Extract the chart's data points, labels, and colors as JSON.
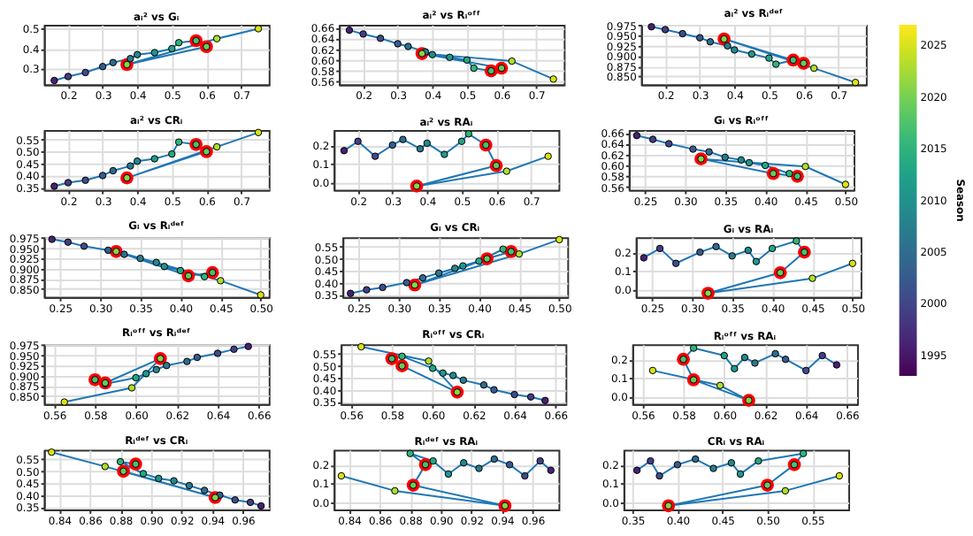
{
  "chart_data": [
    {
      "type": "line",
      "title": "aᵢ² vs Gᵢ",
      "xlim": [
        0.13,
        0.78
      ],
      "xticks": [
        0.2,
        0.3,
        0.4,
        0.5,
        0.6,
        0.7
      ],
      "ylim": [
        0.22,
        0.52
      ],
      "yticks": [
        0.3,
        0.4,
        0.5
      ],
      "grid": true,
      "marker": "circle",
      "clim": [
        1993,
        2027
      ],
      "cticks": [
        1995,
        2000,
        2005,
        2010,
        2015,
        2020,
        2025
      ],
      "clabel": "Season",
      "series": [
        {
          "type": "line",
          "color": "#1f77b4",
          "x": [
            0.16,
            0.2,
            0.25,
            0.3,
            0.33,
            0.38,
            0.4,
            0.45,
            0.5,
            0.52,
            0.57,
            0.6,
            0.37,
            0.63,
            0.75
          ],
          "values": [
            0.24,
            0.26,
            0.28,
            0.31,
            0.33,
            0.35,
            0.37,
            0.38,
            0.4,
            0.43,
            0.44,
            0.41,
            0.32,
            0.45,
            0.5
          ],
          "colors": [
            "#482173",
            "#433e85",
            "#3e4c8a",
            "#365c8d",
            "#2e6c8e",
            "#297b8e",
            "#23898e",
            "#1f988b",
            "#22a785",
            "#30b47b",
            "#46c06f",
            "#65cb5e",
            "#86d549",
            "#b0dd2f",
            "#d8e219"
          ]
        },
        {
          "type": "scatter",
          "color": "#ff0000",
          "x": [
            0.57,
            0.6,
            0.37
          ],
          "values": [
            0.44,
            0.41,
            0.32
          ]
        }
      ]
    },
    {
      "type": "line",
      "title": "aᵢ² vs Rᵢᵒᶠᶠ",
      "xlim": [
        0.13,
        0.78
      ],
      "xticks": [
        0.2,
        0.3,
        0.4,
        0.5,
        0.6,
        0.7
      ],
      "ylim": [
        0.555,
        0.665
      ],
      "yticks": [
        0.56,
        0.58,
        {
          "value": 0.6,
          "label": "0.60"
        },
        0.62,
        0.64,
        0.66
      ],
      "grid": true,
      "marker": "circle",
      "series": [
        {
          "type": "line",
          "color": "#1f77b4",
          "x": [
            0.16,
            0.2,
            0.25,
            0.3,
            0.33,
            0.38,
            0.4,
            0.45,
            0.5,
            0.52,
            0.57,
            0.6,
            0.37,
            0.63,
            0.75
          ],
          "values": [
            0.655,
            0.648,
            0.64,
            0.63,
            0.625,
            0.615,
            0.61,
            0.605,
            0.6,
            0.585,
            0.58,
            0.585,
            0.612,
            0.598,
            0.565
          ],
          "colors": [
            "#482173",
            "#433e85",
            "#3e4c8a",
            "#365c8d",
            "#2e6c8e",
            "#297b8e",
            "#23898e",
            "#1f988b",
            "#22a785",
            "#30b47b",
            "#46c06f",
            "#65cb5e",
            "#86d549",
            "#b0dd2f",
            "#d8e219"
          ]
        },
        {
          "type": "scatter",
          "color": "#ff0000",
          "x": [
            0.57,
            0.6,
            0.37
          ],
          "values": [
            0.58,
            0.585,
            0.612
          ]
        }
      ]
    },
    {
      "type": "line",
      "title": "aᵢ² vs Rᵢᵈᵉᶠ",
      "xlim": [
        0.13,
        0.78
      ],
      "xticks": [
        0.2,
        0.3,
        0.4,
        0.5,
        0.6,
        0.7
      ],
      "ylim": [
        0.83,
        0.977
      ],
      "yticks": [
        {
          "value": 0.85,
          "label": "0.850"
        },
        0.875,
        {
          "value": 0.9,
          "label": "0.900"
        },
        0.925,
        {
          "value": 0.95,
          "label": "0.950"
        },
        0.975
      ],
      "grid": true,
      "marker": "circle",
      "series": [
        {
          "type": "line",
          "color": "#1f77b4",
          "x": [
            0.16,
            0.2,
            0.25,
            0.3,
            0.33,
            0.38,
            0.4,
            0.45,
            0.5,
            0.52,
            0.57,
            0.6,
            0.37,
            0.63,
            0.75
          ],
          "values": [
            0.972,
            0.965,
            0.955,
            0.945,
            0.935,
            0.925,
            0.915,
            0.905,
            0.895,
            0.88,
            0.89,
            0.882,
            0.942,
            0.87,
            0.835
          ],
          "colors": [
            "#482173",
            "#433e85",
            "#3e4c8a",
            "#365c8d",
            "#2e6c8e",
            "#297b8e",
            "#23898e",
            "#1f988b",
            "#22a785",
            "#30b47b",
            "#46c06f",
            "#65cb5e",
            "#86d549",
            "#b0dd2f",
            "#d8e219"
          ]
        },
        {
          "type": "scatter",
          "color": "#ff0000",
          "x": [
            0.57,
            0.6,
            0.37
          ],
          "values": [
            0.89,
            0.882,
            0.942
          ]
        }
      ]
    },
    {
      "type": "line",
      "title": "aᵢ² vs CRᵢ",
      "xlim": [
        0.13,
        0.78
      ],
      "xticks": [
        0.2,
        0.3,
        0.4,
        0.5,
        0.6,
        0.7
      ],
      "ylim": [
        0.34,
        0.59
      ],
      "yticks": [
        0.35,
        {
          "value": 0.4,
          "label": "0.40"
        },
        0.45,
        {
          "value": 0.5,
          "label": "0.50"
        },
        0.55
      ],
      "grid": true,
      "marker": "circle",
      "series": [
        {
          "type": "line",
          "color": "#1f77b4",
          "x": [
            0.16,
            0.2,
            0.25,
            0.3,
            0.33,
            0.38,
            0.4,
            0.45,
            0.5,
            0.52,
            0.57,
            0.6,
            0.37,
            0.63,
            0.75
          ],
          "values": [
            0.355,
            0.37,
            0.38,
            0.4,
            0.42,
            0.44,
            0.46,
            0.47,
            0.49,
            0.54,
            0.53,
            0.5,
            0.39,
            0.52,
            0.58
          ],
          "colors": [
            "#482173",
            "#433e85",
            "#3e4c8a",
            "#365c8d",
            "#2e6c8e",
            "#297b8e",
            "#23898e",
            "#1f988b",
            "#22a785",
            "#30b47b",
            "#46c06f",
            "#65cb5e",
            "#86d549",
            "#b0dd2f",
            "#d8e219"
          ]
        },
        {
          "type": "scatter",
          "color": "#ff0000",
          "x": [
            0.57,
            0.6,
            0.37
          ],
          "values": [
            0.53,
            0.5,
            0.39
          ]
        }
      ]
    },
    {
      "type": "line",
      "title": "aᵢ² vs RAᵢ",
      "xlim": [
        0.13,
        0.78
      ],
      "xticks": [
        0.2,
        0.3,
        0.4,
        0.5,
        0.6,
        0.7
      ],
      "ylim": [
        -0.04,
        0.28
      ],
      "yticks": [
        {
          "value": 0,
          "label": "0.0"
        },
        0.1,
        0.2
      ],
      "grid": true,
      "marker": "circle",
      "series": [
        {
          "type": "line",
          "color": "#1f77b4",
          "x": [
            0.16,
            0.2,
            0.25,
            0.3,
            0.33,
            0.38,
            0.4,
            0.45,
            0.5,
            0.52,
            0.57,
            0.6,
            0.37,
            0.63,
            0.75
          ],
          "values": [
            0.17,
            0.22,
            0.14,
            0.2,
            0.23,
            0.18,
            0.21,
            0.15,
            0.22,
            0.26,
            0.2,
            0.09,
            -0.02,
            0.06,
            0.14
          ],
          "colors": [
            "#482173",
            "#433e85",
            "#3e4c8a",
            "#365c8d",
            "#2e6c8e",
            "#297b8e",
            "#23898e",
            "#1f988b",
            "#22a785",
            "#30b47b",
            "#46c06f",
            "#65cb5e",
            "#86d549",
            "#b0dd2f",
            "#d8e219"
          ]
        },
        {
          "type": "scatter",
          "color": "#ff0000",
          "x": [
            0.57,
            0.6,
            0.37
          ],
          "values": [
            0.2,
            0.09,
            -0.02
          ]
        }
      ]
    },
    {
      "type": "line",
      "title": "Gᵢ vs Rᵢᵒᶠᶠ",
      "xlim": [
        0.23,
        0.51
      ],
      "xticks": [
        0.25,
        {
          "value": 0.3,
          "label": "0.30"
        },
        0.35,
        {
          "value": 0.4,
          "label": "0.40"
        },
        0.45,
        {
          "value": 0.5,
          "label": "0.50"
        }
      ],
      "ylim": [
        0.555,
        0.665
      ],
      "yticks": [
        0.56,
        0.58,
        {
          "value": 0.6,
          "label": "0.60"
        },
        0.62,
        0.64,
        0.66
      ],
      "grid": true,
      "marker": "circle",
      "series": [
        {
          "type": "line",
          "color": "#1f77b4",
          "x": [
            0.24,
            0.26,
            0.28,
            0.31,
            0.33,
            0.35,
            0.37,
            0.38,
            0.4,
            0.43,
            0.44,
            0.41,
            0.32,
            0.45,
            0.5
          ],
          "values": [
            0.655,
            0.648,
            0.64,
            0.63,
            0.625,
            0.615,
            0.61,
            0.605,
            0.6,
            0.585,
            0.58,
            0.585,
            0.612,
            0.598,
            0.565
          ],
          "colors": [
            "#482173",
            "#433e85",
            "#3e4c8a",
            "#365c8d",
            "#2e6c8e",
            "#297b8e",
            "#23898e",
            "#1f988b",
            "#22a785",
            "#30b47b",
            "#46c06f",
            "#65cb5e",
            "#86d549",
            "#b0dd2f",
            "#d8e219"
          ]
        },
        {
          "type": "scatter",
          "color": "#ff0000",
          "x": [
            0.44,
            0.41,
            0.32
          ],
          "values": [
            0.58,
            0.585,
            0.612
          ]
        }
      ]
    },
    {
      "type": "line",
      "title": "Gᵢ vs Rᵢᵈᵉᶠ",
      "xlim": [
        0.23,
        0.51
      ],
      "xticks": [
        0.25,
        {
          "value": 0.3,
          "label": "0.30"
        },
        0.35,
        {
          "value": 0.4,
          "label": "0.40"
        },
        0.45,
        {
          "value": 0.5,
          "label": "0.50"
        }
      ],
      "ylim": [
        0.83,
        0.977
      ],
      "yticks": [
        {
          "value": 0.85,
          "label": "0.850"
        },
        0.875,
        {
          "value": 0.9,
          "label": "0.900"
        },
        0.925,
        {
          "value": 0.95,
          "label": "0.950"
        },
        0.975
      ],
      "grid": true,
      "marker": "circle",
      "series": [
        {
          "type": "line",
          "color": "#1f77b4",
          "x": [
            0.24,
            0.26,
            0.28,
            0.31,
            0.33,
            0.35,
            0.37,
            0.38,
            0.4,
            0.43,
            0.44,
            0.41,
            0.32,
            0.45,
            0.5
          ],
          "values": [
            0.972,
            0.965,
            0.955,
            0.945,
            0.935,
            0.925,
            0.915,
            0.905,
            0.895,
            0.88,
            0.89,
            0.882,
            0.942,
            0.87,
            0.835
          ],
          "colors": [
            "#482173",
            "#433e85",
            "#3e4c8a",
            "#365c8d",
            "#2e6c8e",
            "#297b8e",
            "#23898e",
            "#1f988b",
            "#22a785",
            "#30b47b",
            "#46c06f",
            "#65cb5e",
            "#86d549",
            "#b0dd2f",
            "#d8e219"
          ]
        },
        {
          "type": "scatter",
          "color": "#ff0000",
          "x": [
            0.44,
            0.41,
            0.32
          ],
          "values": [
            0.89,
            0.882,
            0.942
          ]
        }
      ]
    },
    {
      "type": "line",
      "title": "Gᵢ vs CRᵢ",
      "xlim": [
        0.23,
        0.51
      ],
      "xticks": [
        0.25,
        {
          "value": 0.3,
          "label": "0.30"
        },
        0.35,
        {
          "value": 0.4,
          "label": "0.40"
        },
        0.45,
        {
          "value": 0.5,
          "label": "0.50"
        }
      ],
      "ylim": [
        0.34,
        0.59
      ],
      "yticks": [
        0.35,
        {
          "value": 0.4,
          "label": "0.40"
        },
        0.45,
        {
          "value": 0.5,
          "label": "0.50"
        },
        0.55
      ],
      "grid": true,
      "marker": "circle",
      "series": [
        {
          "type": "line",
          "color": "#1f77b4",
          "x": [
            0.24,
            0.26,
            0.28,
            0.31,
            0.33,
            0.35,
            0.37,
            0.38,
            0.4,
            0.43,
            0.44,
            0.41,
            0.32,
            0.45,
            0.5
          ],
          "values": [
            0.355,
            0.37,
            0.38,
            0.4,
            0.42,
            0.44,
            0.46,
            0.47,
            0.49,
            0.54,
            0.53,
            0.5,
            0.39,
            0.52,
            0.58
          ],
          "colors": [
            "#482173",
            "#433e85",
            "#3e4c8a",
            "#365c8d",
            "#2e6c8e",
            "#297b8e",
            "#23898e",
            "#1f988b",
            "#22a785",
            "#30b47b",
            "#46c06f",
            "#65cb5e",
            "#86d549",
            "#b0dd2f",
            "#d8e219"
          ]
        },
        {
          "type": "scatter",
          "color": "#ff0000",
          "x": [
            0.44,
            0.41,
            0.32
          ],
          "values": [
            0.53,
            0.5,
            0.39
          ]
        }
      ]
    },
    {
      "type": "line",
      "title": "Gᵢ vs RAᵢ",
      "xlim": [
        0.23,
        0.51
      ],
      "xticks": [
        0.25,
        {
          "value": 0.3,
          "label": "0.30"
        },
        0.35,
        {
          "value": 0.4,
          "label": "0.40"
        },
        0.45,
        {
          "value": 0.5,
          "label": "0.50"
        }
      ],
      "ylim": [
        -0.04,
        0.28
      ],
      "yticks": [
        {
          "value": 0,
          "label": "0.0"
        },
        0.1,
        0.2
      ],
      "grid": true,
      "marker": "circle",
      "series": [
        {
          "type": "line",
          "color": "#1f77b4",
          "x": [
            0.24,
            0.26,
            0.28,
            0.31,
            0.33,
            0.35,
            0.37,
            0.38,
            0.4,
            0.43,
            0.44,
            0.41,
            0.32,
            0.45,
            0.5
          ],
          "values": [
            0.17,
            0.22,
            0.14,
            0.2,
            0.23,
            0.18,
            0.21,
            0.15,
            0.22,
            0.26,
            0.2,
            0.09,
            -0.02,
            0.06,
            0.14
          ],
          "colors": [
            "#482173",
            "#433e85",
            "#3e4c8a",
            "#365c8d",
            "#2e6c8e",
            "#297b8e",
            "#23898e",
            "#1f988b",
            "#22a785",
            "#30b47b",
            "#46c06f",
            "#65cb5e",
            "#86d549",
            "#b0dd2f",
            "#d8e219"
          ]
        },
        {
          "type": "scatter",
          "color": "#ff0000",
          "x": [
            0.44,
            0.41,
            0.32
          ],
          "values": [
            0.2,
            0.09,
            -0.02
          ]
        }
      ]
    },
    {
      "type": "line",
      "title": "Rᵢᵒᶠᶠ vs Rᵢᵈᵉᶠ",
      "xlim": [
        0.555,
        0.665
      ],
      "xticks": [
        0.56,
        0.58,
        {
          "value": 0.6,
          "label": "0.60"
        },
        0.62,
        0.64,
        0.66
      ],
      "ylim": [
        0.83,
        0.977
      ],
      "yticks": [
        {
          "value": 0.85,
          "label": "0.850"
        },
        0.875,
        {
          "value": 0.9,
          "label": "0.900"
        },
        0.925,
        {
          "value": 0.95,
          "label": "0.950"
        },
        0.975
      ],
      "grid": true,
      "marker": "circle",
      "series": [
        {
          "type": "line",
          "color": "#1f77b4",
          "x": [
            0.655,
            0.648,
            0.64,
            0.63,
            0.625,
            0.615,
            0.61,
            0.605,
            0.6,
            0.585,
            0.58,
            0.585,
            0.612,
            0.598,
            0.565
          ],
          "values": [
            0.972,
            0.965,
            0.955,
            0.945,
            0.935,
            0.925,
            0.915,
            0.905,
            0.895,
            0.88,
            0.89,
            0.882,
            0.942,
            0.87,
            0.835
          ],
          "colors": [
            "#482173",
            "#433e85",
            "#3e4c8a",
            "#365c8d",
            "#2e6c8e",
            "#297b8e",
            "#23898e",
            "#1f988b",
            "#22a785",
            "#30b47b",
            "#46c06f",
            "#65cb5e",
            "#86d549",
            "#b0dd2f",
            "#d8e219"
          ]
        },
        {
          "type": "scatter",
          "color": "#ff0000",
          "x": [
            0.58,
            0.585,
            0.612
          ],
          "values": [
            0.89,
            0.882,
            0.942
          ]
        }
      ]
    },
    {
      "type": "line",
      "title": "Rᵢᵒᶠᶠ vs CRᵢ",
      "xlim": [
        0.555,
        0.665
      ],
      "xticks": [
        0.56,
        0.58,
        {
          "value": 0.6,
          "label": "0.60"
        },
        0.62,
        0.64,
        0.66
      ],
      "ylim": [
        0.34,
        0.59
      ],
      "yticks": [
        0.35,
        {
          "value": 0.4,
          "label": "0.40"
        },
        0.45,
        {
          "value": 0.5,
          "label": "0.50"
        },
        0.55
      ],
      "grid": true,
      "marker": "circle",
      "series": [
        {
          "type": "line",
          "color": "#1f77b4",
          "x": [
            0.655,
            0.648,
            0.64,
            0.63,
            0.625,
            0.615,
            0.61,
            0.605,
            0.6,
            0.585,
            0.58,
            0.585,
            0.612,
            0.598,
            0.565
          ],
          "values": [
            0.355,
            0.37,
            0.38,
            0.4,
            0.42,
            0.44,
            0.46,
            0.47,
            0.49,
            0.54,
            0.53,
            0.5,
            0.39,
            0.52,
            0.58
          ],
          "colors": [
            "#482173",
            "#433e85",
            "#3e4c8a",
            "#365c8d",
            "#2e6c8e",
            "#297b8e",
            "#23898e",
            "#1f988b",
            "#22a785",
            "#30b47b",
            "#46c06f",
            "#65cb5e",
            "#86d549",
            "#b0dd2f",
            "#d8e219"
          ]
        },
        {
          "type": "scatter",
          "color": "#ff0000",
          "x": [
            0.58,
            0.585,
            0.612
          ],
          "values": [
            0.53,
            0.5,
            0.39
          ]
        }
      ]
    },
    {
      "type": "line",
      "title": "Rᵢᵒᶠᶠ vs RAᵢ",
      "xlim": [
        0.555,
        0.665
      ],
      "xticks": [
        0.56,
        0.58,
        {
          "value": 0.6,
          "label": "0.60"
        },
        0.62,
        0.64,
        0.66
      ],
      "ylim": [
        -0.04,
        0.28
      ],
      "yticks": [
        {
          "value": 0,
          "label": "0.0"
        },
        0.1,
        0.2
      ],
      "grid": true,
      "marker": "circle",
      "series": [
        {
          "type": "line",
          "color": "#1f77b4",
          "x": [
            0.655,
            0.648,
            0.64,
            0.63,
            0.625,
            0.615,
            0.61,
            0.605,
            0.6,
            0.585,
            0.58,
            0.585,
            0.612,
            0.598,
            0.565
          ],
          "values": [
            0.17,
            0.22,
            0.14,
            0.2,
            0.23,
            0.18,
            0.21,
            0.15,
            0.22,
            0.26,
            0.2,
            0.09,
            -0.02,
            0.06,
            0.14
          ],
          "colors": [
            "#482173",
            "#433e85",
            "#3e4c8a",
            "#365c8d",
            "#2e6c8e",
            "#297b8e",
            "#23898e",
            "#1f988b",
            "#22a785",
            "#30b47b",
            "#46c06f",
            "#65cb5e",
            "#86d549",
            "#b0dd2f",
            "#d8e219"
          ]
        },
        {
          "type": "scatter",
          "color": "#ff0000",
          "x": [
            0.58,
            0.585,
            0.612
          ],
          "values": [
            0.2,
            0.09,
            -0.02
          ]
        }
      ]
    },
    {
      "type": "line",
      "title": "Rᵢᵈᵉᶠ vs CRᵢ",
      "xlim": [
        0.83,
        0.977
      ],
      "xticks": [
        0.84,
        0.86,
        0.88,
        {
          "value": 0.9,
          "label": "0.90"
        },
        0.92,
        0.94,
        0.96
      ],
      "ylim": [
        0.34,
        0.59
      ],
      "yticks": [
        0.35,
        {
          "value": 0.4,
          "label": "0.40"
        },
        0.45,
        {
          "value": 0.5,
          "label": "0.50"
        },
        0.55
      ],
      "grid": true,
      "marker": "circle",
      "series": [
        {
          "type": "line",
          "color": "#1f77b4",
          "x": [
            0.972,
            0.965,
            0.955,
            0.945,
            0.935,
            0.925,
            0.915,
            0.905,
            0.895,
            0.88,
            0.89,
            0.882,
            0.942,
            0.87,
            0.835
          ],
          "values": [
            0.355,
            0.37,
            0.38,
            0.4,
            0.42,
            0.44,
            0.46,
            0.47,
            0.49,
            0.54,
            0.53,
            0.5,
            0.39,
            0.52,
            0.58
          ],
          "colors": [
            "#482173",
            "#433e85",
            "#3e4c8a",
            "#365c8d",
            "#2e6c8e",
            "#297b8e",
            "#23898e",
            "#1f988b",
            "#22a785",
            "#30b47b",
            "#46c06f",
            "#65cb5e",
            "#86d549",
            "#b0dd2f",
            "#d8e219"
          ]
        },
        {
          "type": "scatter",
          "color": "#ff0000",
          "x": [
            0.89,
            0.882,
            0.942
          ],
          "values": [
            0.53,
            0.5,
            0.39
          ]
        }
      ]
    },
    {
      "type": "line",
      "title": "Rᵢᵈᵉᶠ vs RAᵢ",
      "xlim": [
        0.83,
        0.977
      ],
      "xticks": [
        0.84,
        0.86,
        0.88,
        {
          "value": 0.9,
          "label": "0.90"
        },
        0.92,
        0.94,
        0.96
      ],
      "ylim": [
        -0.04,
        0.28
      ],
      "yticks": [
        {
          "value": 0,
          "label": "0.0"
        },
        0.1,
        0.2
      ],
      "grid": true,
      "marker": "circle",
      "series": [
        {
          "type": "line",
          "color": "#1f77b4",
          "x": [
            0.972,
            0.965,
            0.955,
            0.945,
            0.935,
            0.925,
            0.915,
            0.905,
            0.895,
            0.88,
            0.89,
            0.882,
            0.942,
            0.87,
            0.835
          ],
          "values": [
            0.17,
            0.22,
            0.14,
            0.2,
            0.23,
            0.18,
            0.21,
            0.15,
            0.22,
            0.26,
            0.2,
            0.09,
            -0.02,
            0.06,
            0.14
          ],
          "colors": [
            "#482173",
            "#433e85",
            "#3e4c8a",
            "#365c8d",
            "#2e6c8e",
            "#297b8e",
            "#23898e",
            "#1f988b",
            "#22a785",
            "#30b47b",
            "#46c06f",
            "#65cb5e",
            "#86d549",
            "#b0dd2f",
            "#d8e219"
          ]
        },
        {
          "type": "scatter",
          "color": "#ff0000",
          "x": [
            0.89,
            0.882,
            0.942
          ],
          "values": [
            0.2,
            0.09,
            -0.02
          ]
        }
      ]
    },
    {
      "type": "line",
      "title": "CRᵢ vs RAᵢ",
      "xlim": [
        0.34,
        0.59
      ],
      "xticks": [
        0.35,
        {
          "value": 0.4,
          "label": "0.40"
        },
        0.45,
        {
          "value": 0.5,
          "label": "0.50"
        },
        0.55
      ],
      "ylim": [
        -0.04,
        0.28
      ],
      "yticks": [
        {
          "value": 0,
          "label": "0.0"
        },
        0.1,
        0.2
      ],
      "grid": true,
      "marker": "circle",
      "series": [
        {
          "type": "line",
          "color": "#1f77b4",
          "x": [
            0.355,
            0.37,
            0.38,
            0.4,
            0.42,
            0.44,
            0.46,
            0.47,
            0.49,
            0.54,
            0.53,
            0.5,
            0.39,
            0.52,
            0.58
          ],
          "values": [
            0.17,
            0.22,
            0.14,
            0.2,
            0.23,
            0.18,
            0.21,
            0.15,
            0.22,
            0.26,
            0.2,
            0.09,
            -0.02,
            0.06,
            0.14
          ],
          "colors": [
            "#482173",
            "#433e85",
            "#3e4c8a",
            "#365c8d",
            "#2e6c8e",
            "#297b8e",
            "#23898e",
            "#1f988b",
            "#22a785",
            "#30b47b",
            "#46c06f",
            "#65cb5e",
            "#86d549",
            "#b0dd2f",
            "#d8e219"
          ]
        },
        {
          "type": "scatter",
          "color": "#ff0000",
          "x": [
            0.53,
            0.5,
            0.39
          ],
          "values": [
            0.2,
            0.09,
            -0.02
          ]
        }
      ]
    }
  ]
}
